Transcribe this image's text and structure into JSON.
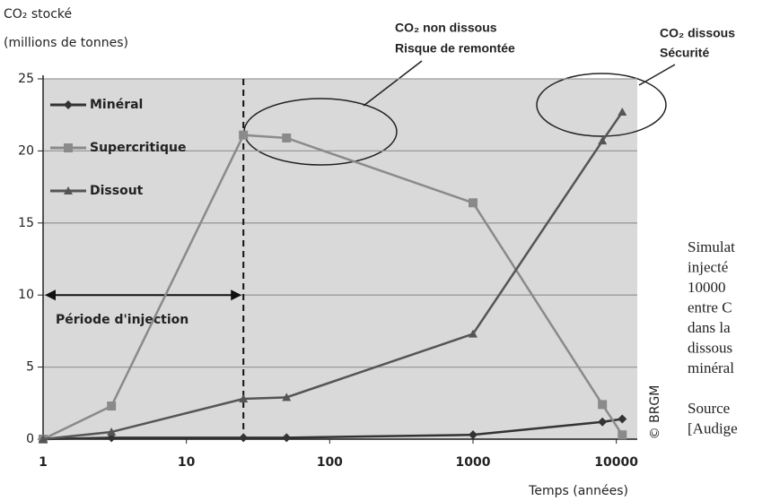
{
  "chart_data": {
    "type": "line",
    "y_label_lines": [
      "CO₂ stocké",
      "(millions de tonnes)"
    ],
    "x_label": "Temps (années)",
    "x": [
      1,
      3,
      25,
      50,
      1000,
      8000,
      11000
    ],
    "series": [
      {
        "name": "Minéral",
        "color": "#333333",
        "marker": "diamond",
        "values": [
          0,
          0.1,
          0.1,
          0.1,
          0.3,
          1.2,
          1.4
        ]
      },
      {
        "name": "Supercritique",
        "color": "#8a8a8a",
        "marker": "square",
        "values": [
          0,
          2.3,
          21.1,
          20.9,
          16.4,
          2.4,
          0.3
        ]
      },
      {
        "name": "Dissout",
        "color": "#555555",
        "marker": "triangle",
        "values": [
          0,
          0.5,
          2.8,
          2.9,
          7.3,
          20.7,
          22.7
        ]
      }
    ],
    "xlim": [
      1,
      14000
    ],
    "xticks": [
      1,
      10,
      100,
      1000,
      10000
    ],
    "log_x": true,
    "ylim": [
      0,
      25
    ],
    "yticks": [
      0,
      5,
      10,
      15,
      20,
      25
    ],
    "grid": true,
    "legend": "upper left",
    "reference_line": {
      "x": 25,
      "y": 10,
      "label": "Période d'injection"
    },
    "annotations": [
      {
        "lines": [
          "CO₂ non dissous",
          "Risque de remontée"
        ]
      },
      {
        "lines": [
          "CO₂ dissous",
          "Sécurité"
        ]
      }
    ],
    "credit": "© BRGM"
  },
  "side_text": {
    "lines": [
      "Simulat",
      "injecté",
      "10000",
      "entre C",
      "dans la",
      "dissous",
      "minéral",
      "",
      "Source",
      "[Audige"
    ]
  }
}
